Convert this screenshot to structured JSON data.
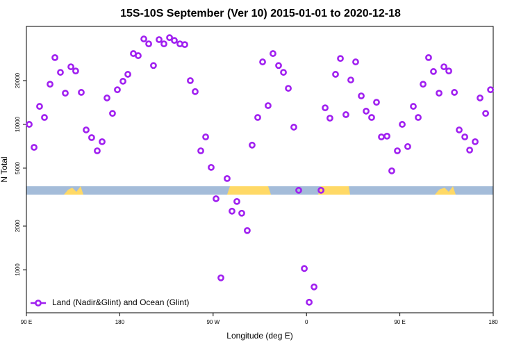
{
  "chart_data": {
    "type": "scatter",
    "title": "15S-10S September (Ver 10)   2015-01-01 to 2020-12-18",
    "x_label": "Longitude (deg E)",
    "y_label": "N Total",
    "y_scale": "log",
    "legend_position": "lower left",
    "xlim": [
      90,
      540
    ],
    "ylim": [
      506,
      47200
    ],
    "xticks": [
      {
        "value": 90,
        "label": "90 E"
      },
      {
        "value": 180,
        "label": "180"
      },
      {
        "value": 270,
        "label": "90 W"
      },
      {
        "value": 360,
        "label": "0"
      },
      {
        "value": 450,
        "label": "90 E"
      },
      {
        "value": 540,
        "label": "180"
      }
    ],
    "yticks": [
      1000,
      2000,
      5000,
      10000,
      20000
    ],
    "series": [
      {
        "name": "Land (Nadir&Glint) and Ocean (Glint)",
        "color": "#a020f0",
        "x": [
          92.7,
          97.4,
          102.7,
          107.4,
          112.8,
          117.5,
          122.8,
          127.5,
          132.9,
          137.5,
          142.9,
          147.6,
          152.9,
          158.3,
          163,
          167.7,
          173,
          177.7,
          183.1,
          187.8,
          193.1,
          197.8,
          203.2,
          207.9,
          212.5,
          217.9,
          222.6,
          228,
          232.6,
          238,
          242.7,
          248,
          252.7,
          258.1,
          262.8,
          268.1,
          272.8,
          277.5,
          283.5,
          288.2,
          292.9,
          297.6,
          302.9,
          307.6,
          313,
          317.7,
          323,
          327.7,
          333.1,
          337.8,
          342.5,
          347.8,
          352.5,
          357.9,
          362.6,
          367.3,
          374,
          378,
          382.6,
          388,
          392.7,
          398,
          402.7,
          407.4,
          412.8,
          417.5,
          422.8,
          427.5,
          432.2,
          437.6,
          442.2,
          447.6,
          452.3,
          457.6,
          463,
          467.7,
          472.4,
          477.7,
          482.4,
          487.8,
          492.5,
          497.2,
          502.6,
          507.2,
          512.6,
          517.3,
          522.6,
          527.3,
          532.7,
          537.4
        ],
        "values": [
          10000,
          6950,
          13300,
          11160,
          18900,
          28800,
          22800,
          16400,
          24900,
          23300,
          16600,
          9160,
          8110,
          6580,
          7600,
          15200,
          11900,
          17300,
          19800,
          22100,
          30700,
          29700,
          38700,
          35800,
          25400,
          38300,
          35800,
          39500,
          37800,
          35800,
          35400,
          20000,
          16800,
          6580,
          8200,
          5060,
          3080,
          880,
          4240,
          2530,
          2950,
          2450,
          1860,
          7200,
          11160,
          26900,
          13460,
          30700,
          25400,
          22800,
          17700,
          9570,
          3520,
          1020,
          598,
          762,
          3520,
          13000,
          11040,
          22100,
          28400,
          11670,
          20200,
          26900,
          15700,
          12330,
          11160,
          14200,
          8200,
          8300,
          4790,
          6580,
          10000,
          7040,
          13300,
          11160,
          18900,
          28800,
          23100,
          16400,
          24900,
          23300,
          16600,
          9160,
          8200,
          6660,
          7600,
          15200,
          11900,
          17300
        ]
      }
    ]
  }
}
